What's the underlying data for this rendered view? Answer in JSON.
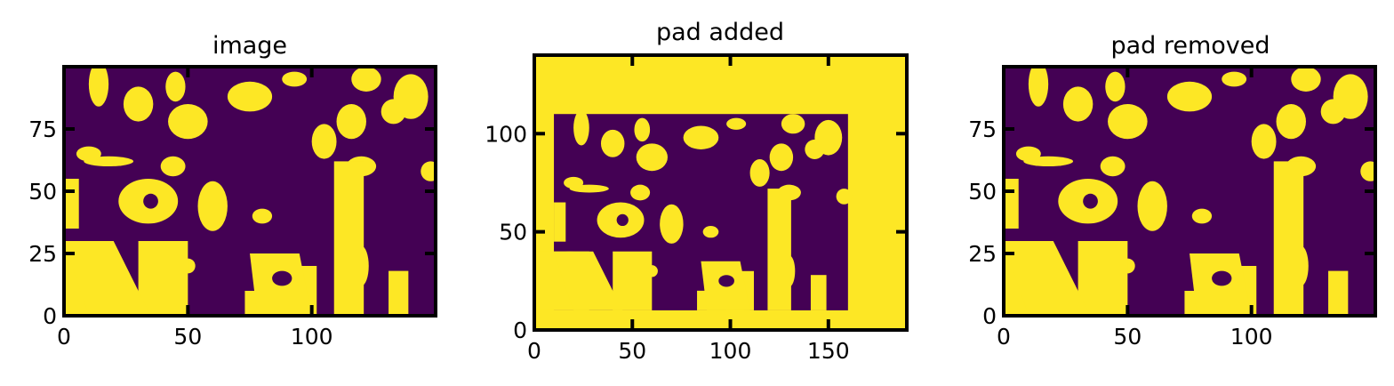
{
  "figure": {
    "colors": {
      "background": "#440154",
      "foreground": "#fde725",
      "axes": "#000000"
    },
    "colormap": "viridis (binary)"
  },
  "chart_data": [
    {
      "type": "heatmap",
      "title": "image",
      "xlabel": "",
      "ylabel": "",
      "xlim": [
        0,
        150
      ],
      "ylim": [
        0,
        100
      ],
      "xticks": [
        0,
        50,
        100
      ],
      "yticks": [
        0,
        25,
        50,
        75
      ],
      "grid": false,
      "values": "binary porous-structure image, 150 x 100 pixels, purple = 0, yellow = 1",
      "blobs": [
        [
          8,
          28,
          8,
          2
        ],
        [
          18,
          62,
          10,
          2
        ],
        [
          14,
          93,
          4,
          9
        ],
        [
          30,
          85,
          6,
          7
        ],
        [
          45,
          92,
          4,
          6
        ],
        [
          50,
          78,
          8,
          7
        ],
        [
          75,
          88,
          9,
          6
        ],
        [
          105,
          70,
          5,
          7
        ],
        [
          120,
          60,
          6,
          4
        ],
        [
          116,
          78,
          6,
          7
        ],
        [
          133,
          82,
          5,
          5
        ],
        [
          140,
          88,
          7,
          9
        ],
        [
          122,
          95,
          6,
          5
        ],
        [
          34,
          46,
          12,
          9
        ],
        [
          60,
          44,
          6,
          10
        ],
        [
          44,
          60,
          5,
          4
        ],
        [
          80,
          40,
          4,
          3
        ],
        [
          50,
          20,
          3,
          3
        ],
        [
          33,
          25,
          2,
          3
        ],
        [
          40,
          10,
          3,
          3
        ],
        [
          120,
          20,
          3,
          8
        ],
        [
          10,
          65,
          5,
          3
        ],
        [
          148,
          58,
          4,
          4
        ],
        [
          93,
          95,
          5,
          3
        ]
      ],
      "bands": [
        [
          0,
          30,
          18,
          2
        ],
        [
          40,
          30,
          10,
          6
        ],
        [
          85,
          10,
          12,
          4
        ],
        [
          95,
          20,
          7,
          2
        ],
        [
          135,
          18,
          4,
          5
        ],
        [
          115,
          62,
          6,
          4
        ]
      ]
    },
    {
      "type": "heatmap",
      "title": "pad added",
      "xlabel": "",
      "ylabel": "",
      "xlim": [
        0,
        190
      ],
      "ylim": [
        0,
        140
      ],
      "xticks": [
        0,
        50,
        100,
        150
      ],
      "yticks": [
        0,
        50,
        100
      ],
      "grid": false,
      "pad_rect": [
        10,
        10,
        160,
        110
      ],
      "values": "image padded with value 1 border; inner image occupies x 10-160, y 10-110"
    },
    {
      "type": "heatmap",
      "title": "pad removed",
      "xlabel": "",
      "ylabel": "",
      "xlim": [
        0,
        150
      ],
      "ylim": [
        0,
        100
      ],
      "xticks": [
        0,
        50,
        100
      ],
      "yticks": [
        0,
        25,
        50,
        75
      ],
      "grid": false,
      "values": "same as first panel"
    }
  ]
}
